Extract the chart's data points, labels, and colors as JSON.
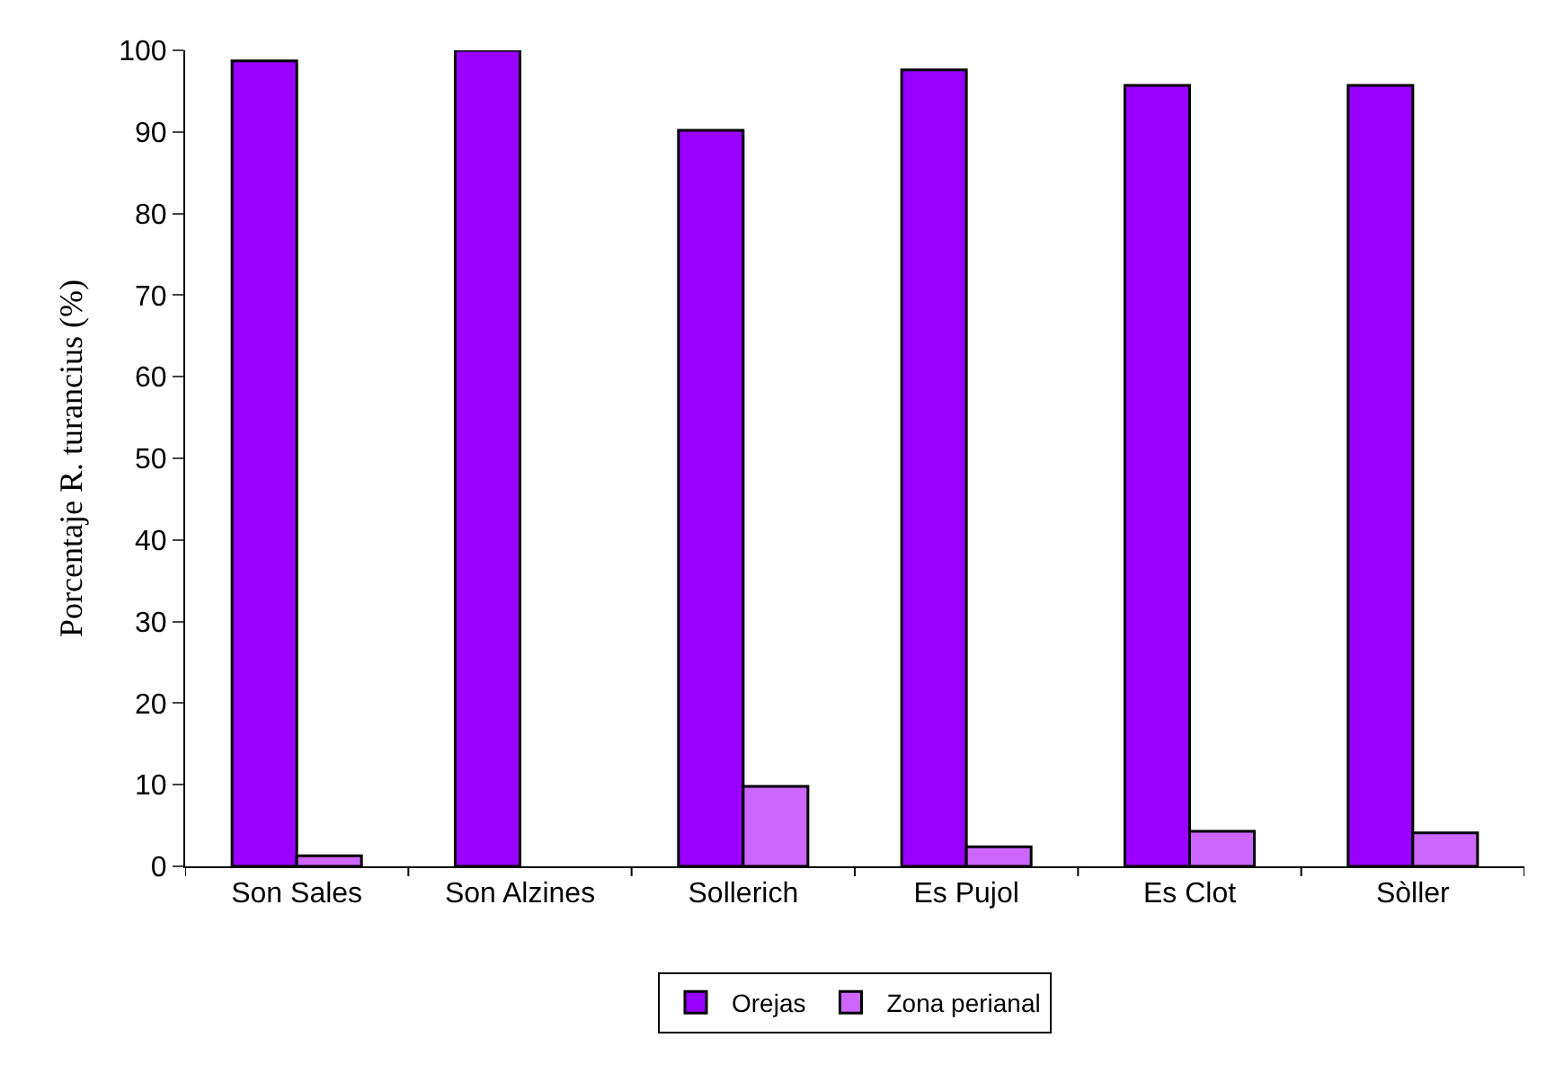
{
  "chart_data": {
    "type": "bar",
    "ylabel": "Porcentaje R. turancius (%)",
    "categories": [
      "Son Sales",
      "Son Alzines",
      "Sollerich",
      "Es Pujol",
      "Es Clot",
      "Sòller"
    ],
    "series": [
      {
        "name": "Orejas",
        "color": "#9900ff",
        "values": [
          98.7,
          100,
          90.2,
          97.6,
          95.7,
          95.7
        ]
      },
      {
        "name": "Zona perianal",
        "color": "#cc66ff",
        "values": [
          1.3,
          null,
          9.8,
          2.4,
          4.3,
          4.1
        ]
      }
    ],
    "ylim": [
      0,
      100
    ],
    "yticks": [
      0,
      10,
      20,
      30,
      40,
      50,
      60,
      70,
      80,
      90,
      100
    ],
    "grid": false,
    "legend": "bottom"
  }
}
